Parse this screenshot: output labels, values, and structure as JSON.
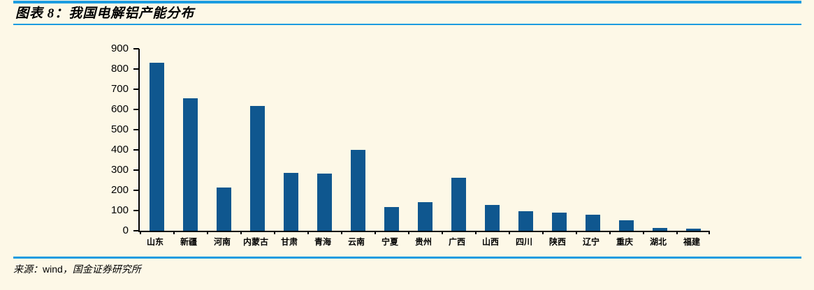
{
  "header": {
    "title": "图表 8：我国电解铝产能分布"
  },
  "footer": {
    "source_label": "来源：",
    "source_en": "wind",
    "source_rest": "，国金证券研究所"
  },
  "colors": {
    "accent_blue": "#1B9CE0",
    "bar_blue": "#0F578F",
    "background": "#FDF8E7",
    "axis_black": "#000000"
  },
  "chart_data": {
    "type": "bar",
    "title": "我国电解铝产能分布",
    "xlabel": "",
    "ylabel": "",
    "categories": [
      "山东",
      "新疆",
      "河南",
      "内蒙古",
      "甘肃",
      "青海",
      "云南",
      "宁夏",
      "贵州",
      "广西",
      "山西",
      "四川",
      "陕西",
      "辽宁",
      "重庆",
      "湖北",
      "福建"
    ],
    "values": [
      830,
      655,
      214,
      618,
      287,
      282,
      400,
      117,
      142,
      262,
      128,
      97,
      90,
      78,
      52,
      15,
      10
    ],
    "ylim": [
      0,
      900
    ],
    "yticks": [
      0,
      100,
      200,
      300,
      400,
      500,
      600,
      700,
      800,
      900
    ],
    "grid": false,
    "legend": false,
    "bar_color": "#0F578F"
  }
}
